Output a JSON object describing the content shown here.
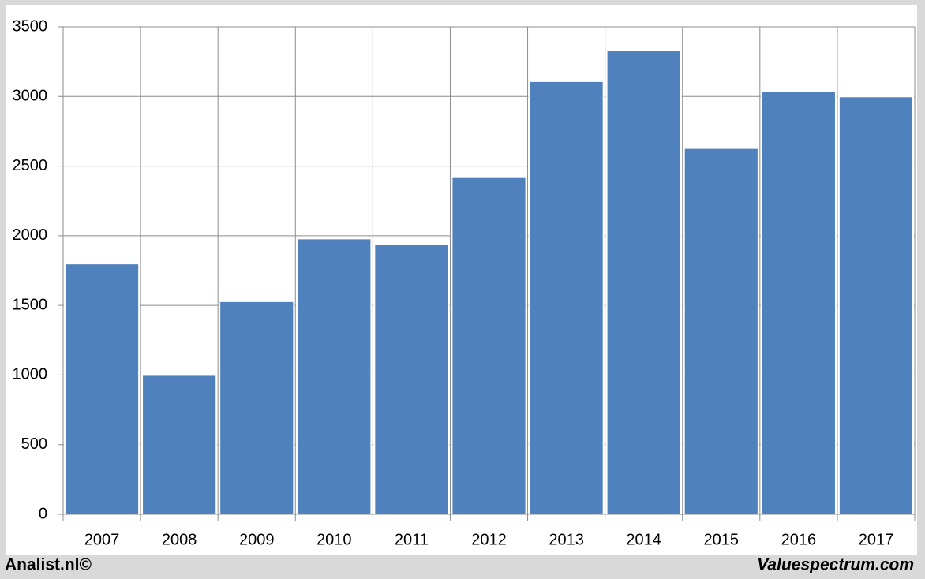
{
  "chart_data": {
    "type": "bar",
    "categories": [
      "2007",
      "2008",
      "2009",
      "2010",
      "2011",
      "2012",
      "2013",
      "2014",
      "2015",
      "2016",
      "2017"
    ],
    "values": [
      1800,
      1000,
      1530,
      1980,
      1940,
      2420,
      3110,
      3330,
      2630,
      3040,
      3000
    ],
    "color": "#4f81bd",
    "ylim": [
      0,
      3500
    ],
    "yticks": [
      0,
      500,
      1000,
      1500,
      2000,
      2500,
      3000,
      3500
    ],
    "grid": true,
    "source_left": "Analist.nl©",
    "source_right": "Valuespectrum.com"
  }
}
